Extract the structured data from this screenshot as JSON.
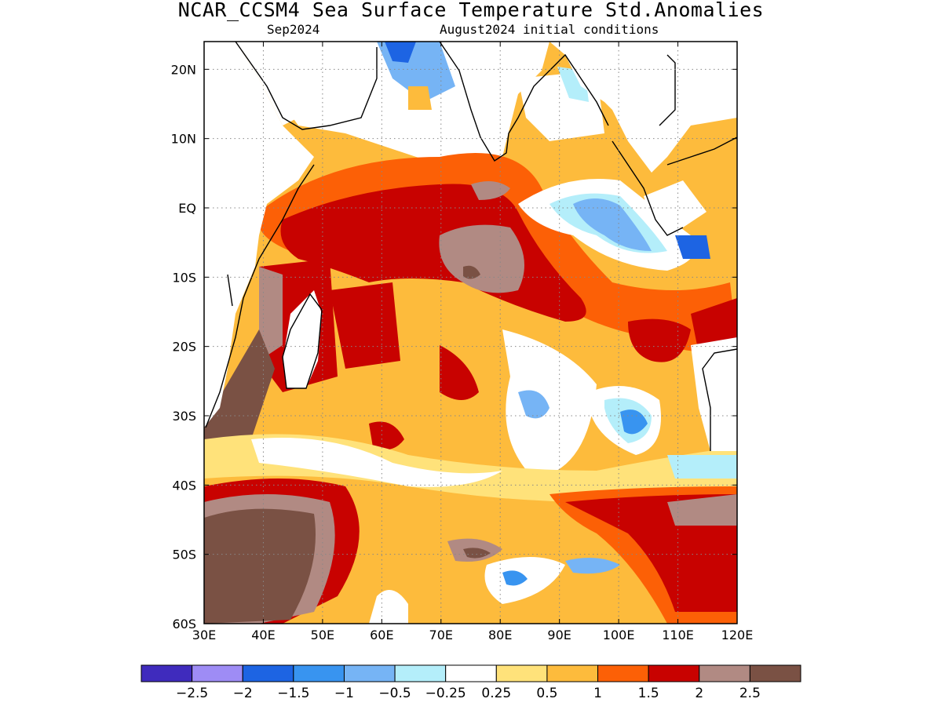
{
  "title": "NCAR_CCSM4 Sea Surface Temperature Std.Anomalies",
  "subtitle_left": "Sep2024",
  "subtitle_right": "August2024 initial conditions",
  "map": {
    "lon_range": [
      30,
      120
    ],
    "lat_range": [
      -60,
      24
    ],
    "lon_ticks": [
      {
        "value": 30,
        "label": "30E"
      },
      {
        "value": 40,
        "label": "40E"
      },
      {
        "value": 50,
        "label": "50E"
      },
      {
        "value": 60,
        "label": "60E"
      },
      {
        "value": 70,
        "label": "70E"
      },
      {
        "value": 80,
        "label": "80E"
      },
      {
        "value": 90,
        "label": "90E"
      },
      {
        "value": 100,
        "label": "100E"
      },
      {
        "value": 110,
        "label": "110E"
      },
      {
        "value": 120,
        "label": "120E"
      }
    ],
    "lat_ticks": [
      {
        "value": 20,
        "label": "20N"
      },
      {
        "value": 10,
        "label": "10N"
      },
      {
        "value": 0,
        "label": "EQ"
      },
      {
        "value": -10,
        "label": "10S"
      },
      {
        "value": -20,
        "label": "20S"
      },
      {
        "value": -30,
        "label": "30S"
      },
      {
        "value": -40,
        "label": "40S"
      },
      {
        "value": -50,
        "label": "50S"
      },
      {
        "value": -60,
        "label": "60S"
      }
    ],
    "gridlines": true,
    "regions": "Indian Ocean"
  },
  "colorbar": {
    "colors": [
      "#3f2bbd",
      "#9e8cf5",
      "#1d64e3",
      "#3894f0",
      "#76b4f5",
      "#b4eefa",
      "#ffffff",
      "#ffe27a",
      "#fdbb3c",
      "#fc6006",
      "#c80200",
      "#b18a83",
      "#7a5144"
    ],
    "labels": [
      "−2.5",
      "−2",
      "−1.5",
      "−1",
      "−0.5",
      "−0.25",
      "0.25",
      "0.5",
      "1",
      "1.5",
      "2",
      "2.5"
    ]
  }
}
